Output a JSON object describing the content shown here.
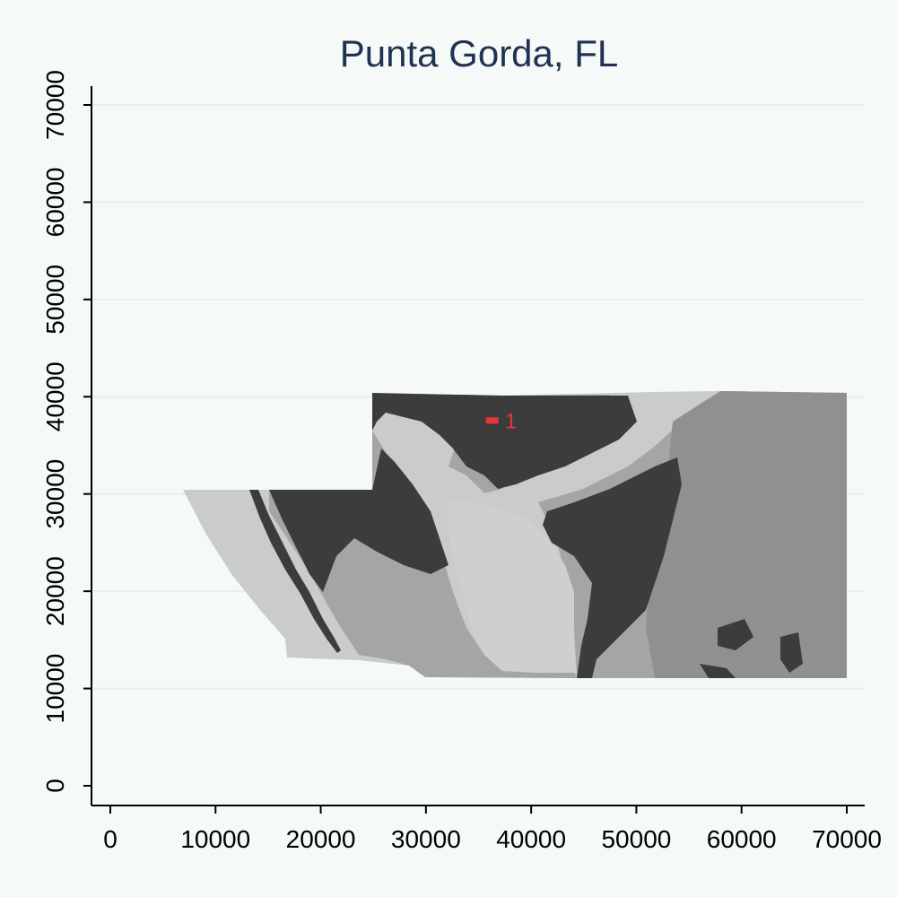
{
  "title": "Punta Gorda, FL",
  "colors": {
    "background": "#f5faf8",
    "title": "#1f3252",
    "gridline": "#e6eef0",
    "water_light": "#c9ccca",
    "land_mid": "#a4a5a4",
    "land_medium": "#8f908f",
    "urban_dark": "#3b3c3b",
    "marker": "#e8353a"
  },
  "x_axis": {
    "range": [
      0,
      70000
    ],
    "ticks": [
      0,
      10000,
      20000,
      30000,
      40000,
      50000,
      60000,
      70000
    ],
    "tick_labels": [
      "0",
      "10000",
      "20000",
      "30000",
      "40000",
      "50000",
      "60000",
      "70000"
    ]
  },
  "y_axis": {
    "range": [
      0,
      70000
    ],
    "ticks": [
      0,
      10000,
      20000,
      30000,
      40000,
      50000,
      60000,
      70000
    ],
    "tick_labels": [
      "0",
      "10000",
      "20000",
      "30000",
      "40000",
      "50000",
      "60000",
      "70000"
    ],
    "grid": true
  },
  "marker": {
    "label": "1",
    "x": 36300,
    "y": 37600
  }
}
